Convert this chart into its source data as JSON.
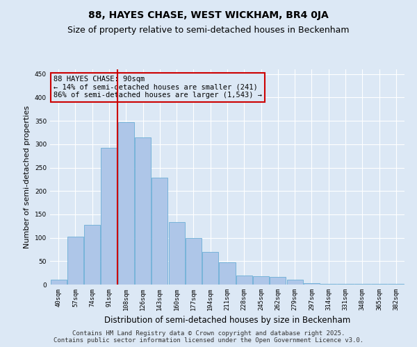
{
  "title": "88, HAYES CHASE, WEST WICKHAM, BR4 0JA",
  "subtitle": "Size of property relative to semi-detached houses in Beckenham",
  "xlabel": "Distribution of semi-detached houses by size in Beckenham",
  "ylabel": "Number of semi-detached properties",
  "categories": [
    "40sqm",
    "57sqm",
    "74sqm",
    "91sqm",
    "108sqm",
    "126sqm",
    "143sqm",
    "160sqm",
    "177sqm",
    "194sqm",
    "211sqm",
    "228sqm",
    "245sqm",
    "262sqm",
    "279sqm",
    "297sqm",
    "314sqm",
    "331sqm",
    "348sqm",
    "365sqm",
    "382sqm"
  ],
  "values": [
    10,
    103,
    128,
    292,
    347,
    315,
    228,
    133,
    100,
    70,
    48,
    20,
    18,
    17,
    10,
    3,
    1,
    1,
    1,
    1,
    1
  ],
  "bar_color": "#aec6e8",
  "bar_edge_color": "#6baed6",
  "highlight_line_color": "#cc0000",
  "highlight_index": 3,
  "annotation_line1": "88 HAYES CHASE: 90sqm",
  "annotation_line2": "← 14% of semi-detached houses are smaller (241)",
  "annotation_line3": "86% of semi-detached houses are larger (1,543) →",
  "annotation_box_color": "#cc0000",
  "ylim": [
    0,
    460
  ],
  "yticks": [
    0,
    50,
    100,
    150,
    200,
    250,
    300,
    350,
    400,
    450
  ],
  "footer_line1": "Contains HM Land Registry data © Crown copyright and database right 2025.",
  "footer_line2": "Contains public sector information licensed under the Open Government Licence v3.0.",
  "background_color": "#dce8f5",
  "grid_color": "#ffffff",
  "title_fontsize": 10,
  "subtitle_fontsize": 9,
  "ylabel_fontsize": 8,
  "xlabel_fontsize": 8.5,
  "tick_fontsize": 6.5,
  "footer_fontsize": 6.5,
  "annotation_fontsize": 7.5
}
